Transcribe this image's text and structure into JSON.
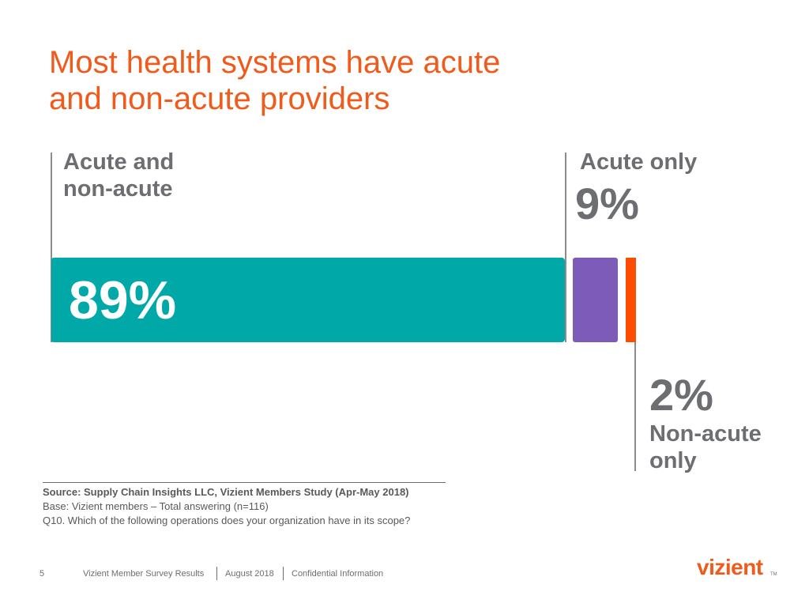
{
  "slide": {
    "title_lines": [
      "Most health systems have acute",
      "and non-acute providers"
    ]
  },
  "chart_data": {
    "type": "bar",
    "orientation": "horizontal-stacked",
    "categories": [
      "Acute and non-acute",
      "Acute only",
      "Non-acute only"
    ],
    "values": [
      89,
      9,
      2
    ],
    "value_labels": [
      "89%",
      "9%",
      "2%"
    ],
    "colors": [
      "#00a9a7",
      "#7c5cb8",
      "#fc4c02"
    ],
    "xlim": [
      0,
      100
    ],
    "legend": "none",
    "grid": false
  },
  "segments": [
    {
      "label_lines": [
        "Acute and",
        "non-acute"
      ],
      "value_label": "89%"
    },
    {
      "label_lines": [
        "Acute only"
      ],
      "value_label": "9%"
    },
    {
      "label_lines": [
        "Non-acute",
        "only"
      ],
      "value_label": "2%"
    }
  ],
  "source": {
    "title": "Source:  Supply Chain Insights LLC, Vizient Members Study (Apr-May 2018)",
    "base": "Base: Vizient members – Total answering (n=116)",
    "question": "Q10. Which of the following operations does your organization have in its scope?"
  },
  "footer": {
    "page_number": "5",
    "deck_title": "Vizient Member Survey Results",
    "date": "August 2018",
    "classification": "Confidential Information"
  },
  "brand": {
    "logo_text": "vizient",
    "trademark": "TM",
    "accent_color": "#f05a1a"
  }
}
